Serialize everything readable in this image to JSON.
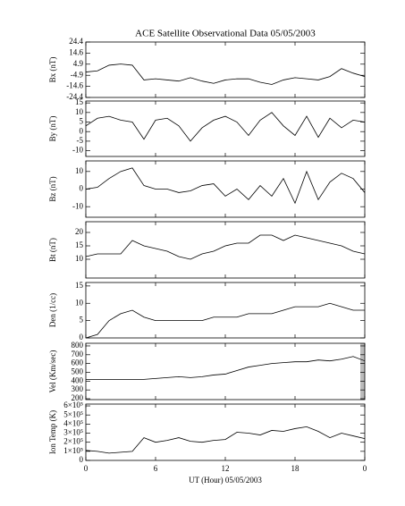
{
  "title": "ACE Satellite Observational Data   05/05/2003",
  "xlabel": "UT (Hour)   05/05/2003",
  "xlim": [
    0,
    24
  ],
  "xticks": [
    0,
    6,
    12,
    18,
    {
      "value": 24,
      "label": "0"
    }
  ],
  "x": [
    0,
    1,
    2,
    3,
    4,
    5,
    6,
    7,
    8,
    9,
    10,
    11,
    12,
    13,
    14,
    15,
    16,
    17,
    18,
    19,
    20,
    21,
    22,
    23,
    24
  ],
  "chart_data": [
    {
      "type": "line",
      "ylabel": "Bx (nT)",
      "ylim": [
        -24.4,
        24.4
      ],
      "yticks": [
        -24.4,
        -14.6,
        -4.9,
        4.9,
        14.6,
        24.4
      ],
      "color": "#000000",
      "values": [
        -2,
        -1,
        4,
        5,
        4,
        -9,
        -8,
        -9,
        -10,
        -7,
        -10,
        -12,
        -9,
        -8,
        -8,
        -11,
        -13,
        -9,
        -7,
        -8,
        -9,
        -6,
        1,
        -3,
        -6
      ]
    },
    {
      "type": "line",
      "ylabel": "By (nT)",
      "ylim": [
        -13,
        16
      ],
      "yticks": [
        -10,
        -5,
        0,
        5,
        10,
        15
      ],
      "color": "#000000",
      "values": [
        3,
        7,
        8,
        6,
        5,
        -4,
        6,
        7,
        3,
        -5,
        2,
        6,
        8,
        5,
        -2,
        6,
        10,
        3,
        -2,
        8,
        -3,
        7,
        2,
        6,
        5
      ]
    },
    {
      "type": "line",
      "ylabel": "Bz (nT)",
      "ylim": [
        -16,
        16
      ],
      "yticks": [
        -10,
        0,
        10
      ],
      "color": "#000000",
      "values": [
        0,
        1,
        6,
        10,
        12,
        2,
        0,
        0,
        -2,
        -1,
        2,
        3,
        -4,
        0,
        -6,
        2,
        -4,
        6,
        -8,
        10,
        -6,
        4,
        9,
        6,
        -2
      ]
    },
    {
      "type": "line",
      "ylabel": "Bt (nT)",
      "ylim": [
        3,
        24
      ],
      "yticks": [
        10,
        15,
        20
      ],
      "color": "#000000",
      "values": [
        11,
        12,
        12,
        12,
        17,
        15,
        14,
        13,
        11,
        10,
        12,
        13,
        15,
        16,
        16,
        19,
        19,
        17,
        19,
        18,
        17,
        16,
        15,
        13,
        12
      ]
    },
    {
      "type": "line",
      "ylabel": "Den (1/cc)",
      "ylim": [
        0,
        16
      ],
      "yticks": [
        0,
        5,
        10,
        15
      ],
      "color": "#000000",
      "values": [
        0,
        1,
        5,
        7,
        8,
        6,
        5,
        5,
        5,
        5,
        5,
        6,
        6,
        6,
        7,
        7,
        7,
        8,
        9,
        9,
        9,
        10,
        9,
        8,
        8
      ]
    },
    {
      "type": "line",
      "ylabel": "Vel (Km/sec)",
      "ylim": [
        190,
        830
      ],
      "yticks": [
        200,
        300,
        400,
        500,
        600,
        700,
        800
      ],
      "color": "#000000",
      "values": [
        420,
        420,
        420,
        420,
        420,
        420,
        430,
        440,
        450,
        440,
        450,
        470,
        480,
        520,
        560,
        580,
        600,
        610,
        620,
        620,
        640,
        630,
        650,
        680,
        630
      ]
    },
    {
      "type": "line",
      "ylabel": "Ion Temp (K)",
      "ylim": [
        0,
        620000
      ],
      "yticks": [
        0,
        {
          "value": 100000,
          "label": "1×10⁵"
        },
        {
          "value": 200000,
          "label": "2×10⁵"
        },
        {
          "value": 300000,
          "label": "3×10⁵"
        },
        {
          "value": 400000,
          "label": "4×10⁵"
        },
        {
          "value": 500000,
          "label": "5×10⁵"
        },
        {
          "value": 600000,
          "label": "6×10⁵"
        }
      ],
      "color": "#000000",
      "values": [
        110000,
        100000,
        80000,
        90000,
        100000,
        250000,
        200000,
        220000,
        250000,
        210000,
        200000,
        220000,
        230000,
        310000,
        300000,
        280000,
        330000,
        320000,
        350000,
        370000,
        320000,
        250000,
        300000,
        270000,
        240000
      ]
    }
  ]
}
